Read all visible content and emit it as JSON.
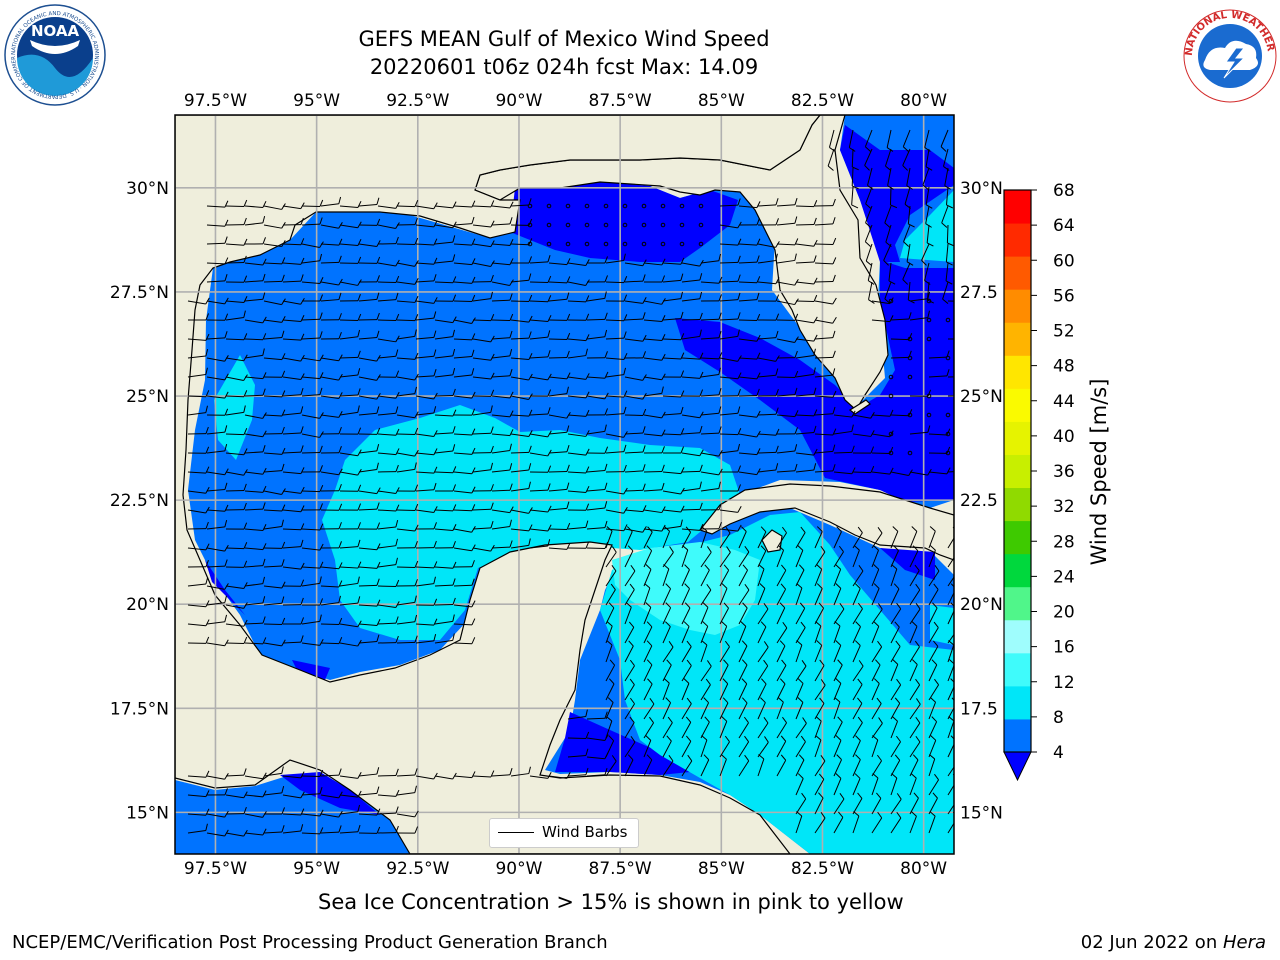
{
  "title": {
    "line1": "GEFS MEAN Gulf of Mexico Wind Speed",
    "line2": "20220601 t06z 024h fcst   Max: 14.09"
  },
  "map": {
    "lon_range": [
      -98.5,
      -79.25
    ],
    "lat_range": [
      14.0,
      31.75
    ],
    "lon_ticks": [
      {
        "value": -97.5,
        "label": "97.5°W"
      },
      {
        "value": -95,
        "label": "95°W"
      },
      {
        "value": -92.5,
        "label": "92.5°W"
      },
      {
        "value": -90,
        "label": "90°W"
      },
      {
        "value": -87.5,
        "label": "87.5°W"
      },
      {
        "value": -85,
        "label": "85°W"
      },
      {
        "value": -82.5,
        "label": "82.5°W"
      },
      {
        "value": -80,
        "label": "80°W"
      }
    ],
    "lat_ticks_left": [
      {
        "value": 30,
        "label": "30°N"
      },
      {
        "value": 27.5,
        "label": "27.5°N"
      },
      {
        "value": 25,
        "label": "25°N"
      },
      {
        "value": 22.5,
        "label": "22.5°N"
      },
      {
        "value": 20,
        "label": "20°N"
      },
      {
        "value": 17.5,
        "label": "17.5°N"
      },
      {
        "value": 15,
        "label": "15°N"
      }
    ],
    "lat_ticks_right": [
      {
        "value": 30,
        "label": "30°N"
      },
      {
        "value": 27.5,
        "label": "27.5"
      },
      {
        "value": 25,
        "label": "25°N"
      },
      {
        "value": 22.5,
        "label": "22.5"
      },
      {
        "value": 20,
        "label": "20°N"
      },
      {
        "value": 17.5,
        "label": "17.5"
      },
      {
        "value": 15,
        "label": "15°N"
      }
    ],
    "grid": true,
    "land_color": "#efeedc",
    "legend": {
      "label": "Wind Barbs",
      "placement": "bottom-center"
    }
  },
  "colorbar": {
    "label": "Wind Speed [m/s]",
    "levels": [
      4,
      8,
      12,
      16,
      20,
      24,
      28,
      32,
      36,
      40,
      44,
      48,
      52,
      56,
      60,
      64,
      68
    ],
    "tick_labels": [
      "4",
      "8",
      "12",
      "16",
      "20",
      "24",
      "28",
      "32",
      "36",
      "40",
      "44",
      "48",
      "52",
      "56",
      "60",
      "64",
      "68"
    ],
    "colors": [
      "#0073ff",
      "#00e6f8",
      "#3ffbfb",
      "#9ffdfd",
      "#50f68a",
      "#00d83d",
      "#3eca00",
      "#90da00",
      "#c8ef00",
      "#e6f300",
      "#fafa00",
      "#ffe600",
      "#ffb400",
      "#ff8c00",
      "#ff5a00",
      "#ff2a00",
      "#ff0000"
    ],
    "under_color": "#0000ff",
    "extend": "min"
  },
  "notes": {
    "sea_ice": "Sea Ice Concentration > 15% is shown in pink to yellow"
  },
  "footer": {
    "left": "NCEP/EMC/Verification Post Processing Product Generation Branch",
    "date": "02 Jun 2022 on ",
    "machine": "Hera"
  },
  "logos": {
    "left": {
      "name": "noaa-logo",
      "text": "NOAA",
      "ring": "NATIONAL OCEANIC AND ATMOSPHERIC ADMINISTRATION · U.S. DEPARTMENT OF COMMERCE"
    },
    "right": {
      "name": "nws-logo",
      "ring": "NATIONAL WEATHER SERVICE"
    }
  }
}
